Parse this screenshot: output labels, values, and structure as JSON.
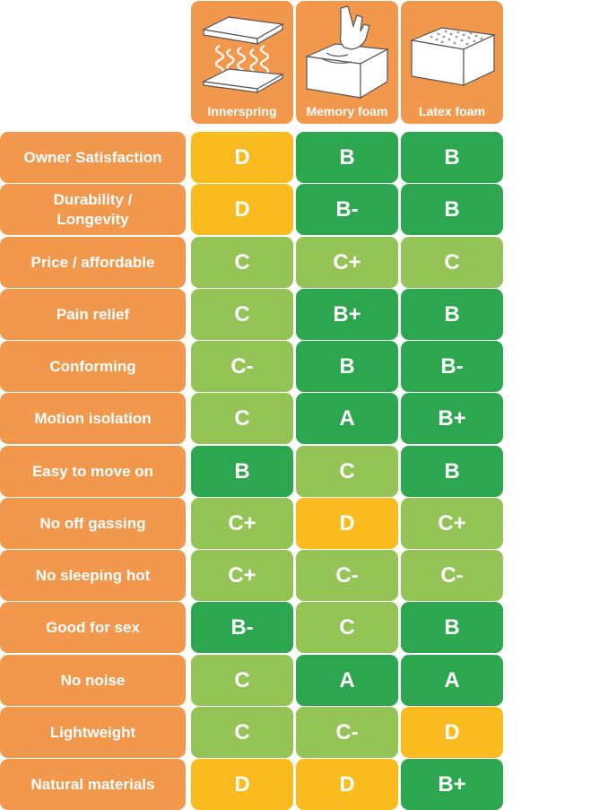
{
  "colors": {
    "label_bg": "#f2984c",
    "header_bg": "#f2984c",
    "grade_A": "#2da74f",
    "grade_B": "#2da74f",
    "grade_C": "#93c455",
    "grade_D": "#f9bb1d"
  },
  "columns": [
    {
      "label": "Innerspring",
      "icon": "innerspring-coil-mattress-icon"
    },
    {
      "label": "Memory foam",
      "icon": "hand-pressing-foam-icon"
    },
    {
      "label": "Latex foam",
      "icon": "latex-foam-block-icon"
    }
  ],
  "rows": [
    {
      "label": "Owner Satisfaction",
      "grades": [
        "D",
        "B",
        "B"
      ]
    },
    {
      "label": "Durability /\nLongevity",
      "grades": [
        "D",
        "B-",
        "B"
      ]
    },
    {
      "label": "Price / affordable",
      "grades": [
        "C",
        "C+",
        "C"
      ]
    },
    {
      "label": "Pain relief",
      "grades": [
        "C",
        "B+",
        "B"
      ]
    },
    {
      "label": "Conforming",
      "grades": [
        "C-",
        "B",
        "B-"
      ]
    },
    {
      "label": "Motion isolation",
      "grades": [
        "C",
        "A",
        "B+"
      ]
    },
    {
      "label": "Easy to move on",
      "grades": [
        "B",
        "C",
        "B"
      ]
    },
    {
      "label": "No off gassing",
      "grades": [
        "C+",
        "D",
        "C+"
      ]
    },
    {
      "label": "No sleeping hot",
      "grades": [
        "C+",
        "C-",
        "C-"
      ]
    },
    {
      "label": "Good for sex",
      "grades": [
        "B-",
        "C",
        "B"
      ]
    },
    {
      "label": "No noise",
      "grades": [
        "C",
        "A",
        "A"
      ]
    },
    {
      "label": "Lightweight",
      "grades": [
        "C",
        "C-",
        "D"
      ]
    },
    {
      "label": "Natural materials",
      "grades": [
        "D",
        "D",
        "B+"
      ]
    }
  ]
}
